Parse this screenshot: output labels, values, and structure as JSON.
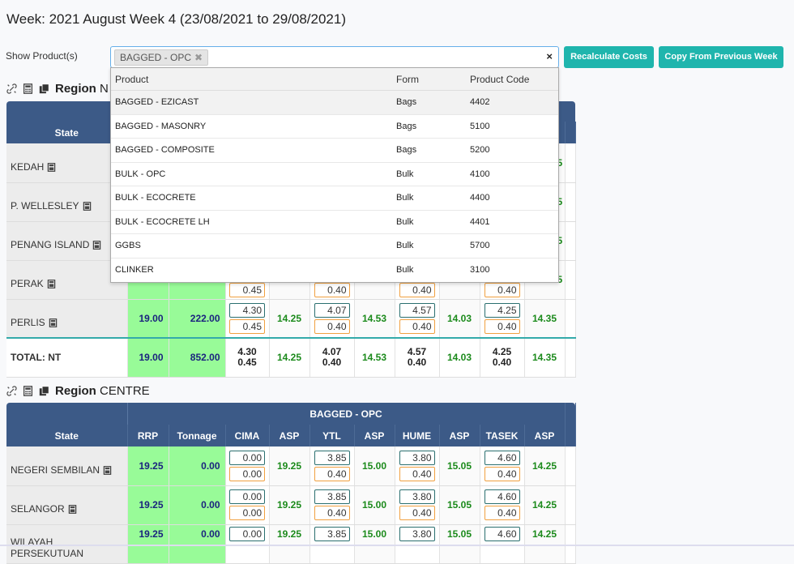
{
  "page_title": "Week: 2021 August Week 4 (23/08/2021 to 29/08/2021)",
  "filter": {
    "label": "Show Product(s)",
    "selected_tag": "BAGGED - OPC",
    "clear": "×"
  },
  "buttons": {
    "recalc": "Recalculate Costs",
    "copy": "Copy From Previous Week"
  },
  "dropdown": {
    "headers": [
      "Product",
      "Form",
      "Product Code"
    ],
    "rows": [
      {
        "product": "BAGGED - EZICAST",
        "form": "Bags",
        "code": "4402"
      },
      {
        "product": "BAGGED - MASONRY",
        "form": "Bags",
        "code": "5100"
      },
      {
        "product": "BAGGED - COMPOSITE",
        "form": "Bags",
        "code": "5200"
      },
      {
        "product": "BULK - OPC",
        "form": "Bulk",
        "code": "4100"
      },
      {
        "product": "BULK - ECOCRETE",
        "form": "Bulk",
        "code": "4400"
      },
      {
        "product": "BULK - ECOCRETE LH",
        "form": "Bulk",
        "code": "4401"
      },
      {
        "product": "GGBS",
        "form": "Bulk",
        "code": "5700"
      },
      {
        "product": "CLINKER",
        "form": "Bulk",
        "code": "3100"
      }
    ]
  },
  "region_north": {
    "label_prefix": "Region",
    "label_name": "N",
    "state_header": "State",
    "states": [
      "KEDAH",
      "P. WELLESLEY",
      "PENANG ISLAND",
      "PERAK"
    ],
    "perlis": {
      "state": "PERLIS",
      "rrp": "19.00",
      "tonnage": "222.00",
      "cima": "4.30",
      "cima_b": "0.45",
      "asp1": "14.25",
      "ytl": "4.07",
      "ytl_b": "0.40",
      "asp2": "14.53",
      "hume": "4.57",
      "hume_b": "0.40",
      "asp3": "14.03",
      "tasek": "4.25",
      "tasek_b": "0.40",
      "asp4": "14.35"
    },
    "perak_b": {
      "cima": "0.45",
      "ytl": "0.40",
      "hume": "0.40",
      "tasek": "0.40"
    },
    "total": {
      "label": "TOTAL: NT",
      "rrp": "19.00",
      "tonnage": "852.00",
      "cima": "4.30",
      "cima_b": "0.45",
      "asp1": "14.25",
      "ytl": "4.07",
      "ytl_b": "0.40",
      "asp2": "14.53",
      "hume": "4.57",
      "hume_b": "0.40",
      "asp3": "14.03",
      "tasek": "4.25",
      "tasek_b": "0.40",
      "asp4": "14.35"
    },
    "right_peek": [
      "5",
      "5",
      "5",
      "5"
    ]
  },
  "region_centre": {
    "label_prefix": "Region",
    "label_name": "CENTRE",
    "product_header": "BAGGED - OPC",
    "headers": [
      "State",
      "RRP",
      "Tonnage",
      "CIMA",
      "ASP",
      "YTL",
      "ASP",
      "HUME",
      "ASP",
      "TASEK",
      "ASP"
    ],
    "rows": [
      {
        "state": "NEGERI SEMBILAN",
        "rrp": "19.25",
        "tonnage": "0.00",
        "cima": "0.00",
        "cima_b": "0.00",
        "asp1": "19.25",
        "ytl": "3.85",
        "ytl_b": "0.40",
        "asp2": "15.00",
        "hume": "3.80",
        "hume_b": "0.40",
        "asp3": "15.05",
        "tasek": "4.60",
        "tasek_b": "0.40",
        "asp4": "14.25"
      },
      {
        "state": "SELANGOR",
        "rrp": "19.25",
        "tonnage": "0.00",
        "cima": "0.00",
        "cima_b": "0.00",
        "asp1": "19.25",
        "ytl": "3.85",
        "ytl_b": "0.40",
        "asp2": "15.00",
        "hume": "3.80",
        "hume_b": "0.40",
        "asp3": "15.05",
        "tasek": "4.60",
        "tasek_b": "0.40",
        "asp4": "14.25"
      },
      {
        "state": "WILAYAH PERSEKUTUAN",
        "rrp": "19.25",
        "tonnage": "0.00",
        "cima": "0.00",
        "asp1": "19.25",
        "ytl": "3.85",
        "asp2": "15.00",
        "hume": "3.80",
        "asp3": "15.05",
        "tasek": "4.60",
        "asp4": "14.25"
      }
    ]
  },
  "icons": [
    "unlink-icon",
    "calculator-icon",
    "copy-icon"
  ],
  "colors": {
    "header": "#3c5a87",
    "accent": "#1fb5ad",
    "green_cell": "#98fb98",
    "asp_text": "#1b8a1b"
  }
}
